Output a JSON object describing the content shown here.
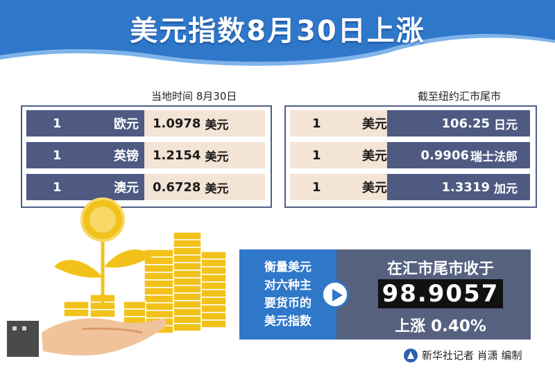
{
  "header": {
    "title": "美元指数8月30日上涨"
  },
  "left_panel": {
    "caption": "当地时间  8月30日",
    "rows": [
      {
        "amount": "1",
        "currency": "欧元",
        "rate": "1.0978",
        "unit": "美元"
      },
      {
        "amount": "1",
        "currency": "英镑",
        "rate": "1.2154",
        "unit": "美元"
      },
      {
        "amount": "1",
        "currency": "澳元",
        "rate": "0.6728",
        "unit": "美元"
      }
    ]
  },
  "right_panel": {
    "caption": "截至纽约汇市尾市",
    "rows": [
      {
        "amount": "1",
        "currency": "美元",
        "rate": "106.25",
        "unit": "日元"
      },
      {
        "amount": "1",
        "currency": "美元",
        "rate": "0.9906",
        "unit": "瑞士法郎"
      },
      {
        "amount": "1",
        "currency": "美元",
        "rate": "1.3319",
        "unit": "加元"
      }
    ]
  },
  "index": {
    "description_lines": [
      "衡量美元",
      "对六种主",
      "要货币的",
      "美元指数"
    ],
    "close_label": "在汇市尾市收于",
    "close_value": "98.9057",
    "change_label": "上涨",
    "change_value": "0.40%"
  },
  "credit": {
    "text": "新华社记者 肖潇 编制"
  },
  "colors": {
    "header_blue": "#2f77c9",
    "panel_dark": "#4e5a82",
    "panel_light": "#f4e4d6",
    "gold": "#f2c21b"
  },
  "icons": [
    "play-arrow-icon",
    "xinhua-logo-icon",
    "coin-plant-illustration",
    "hand-illustration"
  ]
}
